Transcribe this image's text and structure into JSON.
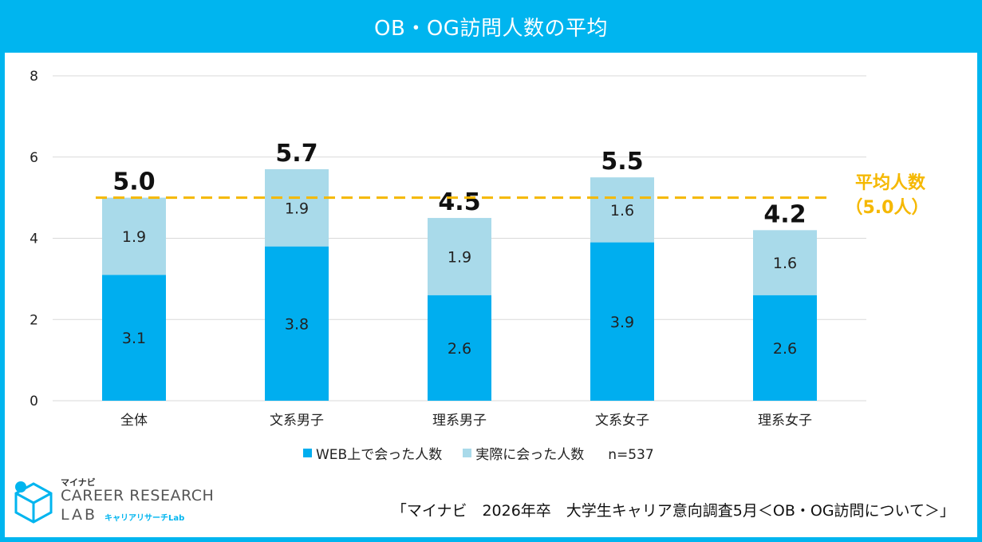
{
  "title": "OB・OG訪問人数の平均",
  "colors": {
    "frame": "#00b5ef",
    "web": "#00aeef",
    "real": "#a9daea",
    "average_line": "#f5b800",
    "grid": "#d9d9d9"
  },
  "chart_data": {
    "type": "bar",
    "stacked": true,
    "title": "OB・OG訪問人数の平均",
    "categories": [
      "全体",
      "文系男子",
      "理系男子",
      "文系女子",
      "理系女子"
    ],
    "series": [
      {
        "name": "WEB上で会った人数",
        "values": [
          3.1,
          3.8,
          2.6,
          3.9,
          2.6
        ]
      },
      {
        "name": "実際に会った人数",
        "values": [
          1.9,
          1.9,
          1.9,
          1.6,
          1.6
        ]
      }
    ],
    "totals": [
      "5.0",
      "5.7",
      "4.5",
      "5.5",
      "4.2"
    ],
    "ylim": [
      0,
      8
    ],
    "yticks": [
      0,
      2,
      4,
      6,
      8
    ],
    "grid": true,
    "legend_position": "bottom",
    "average": {
      "value": 5.0,
      "label_line1": "平均人数",
      "label_line2": "（5.0人）"
    }
  },
  "legend": {
    "web_label": "WEB上で会った人数",
    "real_label": "実際に会った人数",
    "n_label": "n=537"
  },
  "logo": {
    "brand": "マイナビ",
    "line1": "CAREER RESEARCH",
    "line2": "LAB",
    "line3": "キャリアリサーチLab"
  },
  "source": "「マイナビ　2026年卒　大学生キャリア意向調査5月＜OB・OG訪問について＞」"
}
